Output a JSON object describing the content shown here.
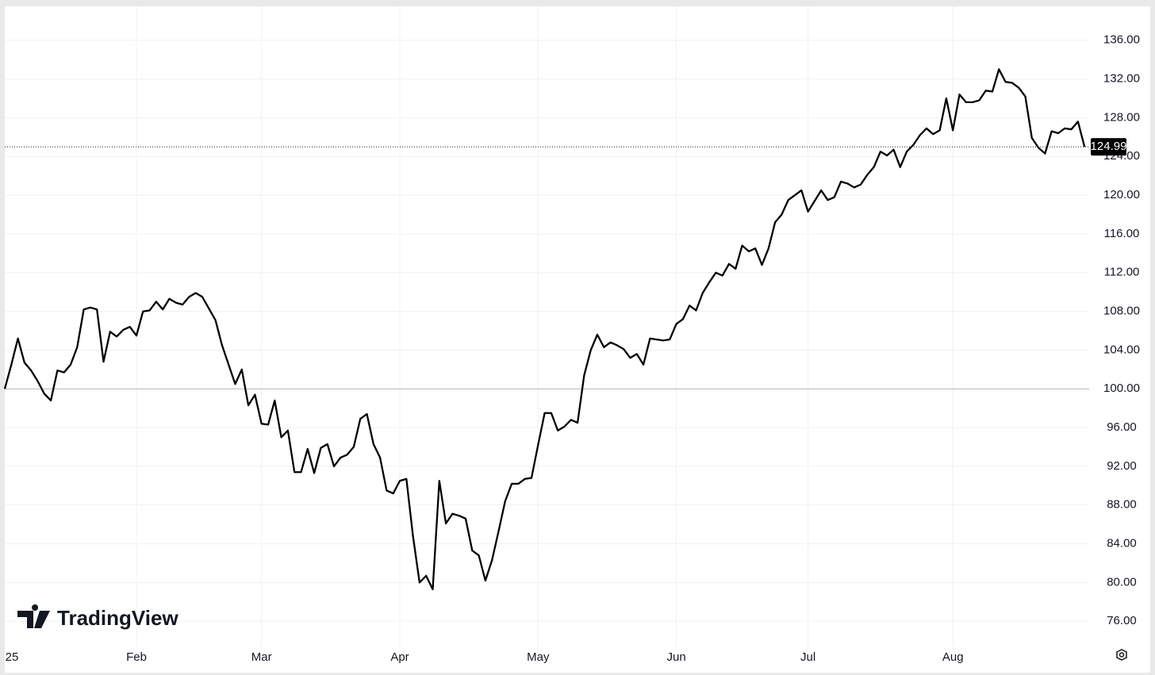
{
  "chart_data": {
    "type": "line",
    "brand": "TradingView",
    "categories": [
      "25",
      null,
      null,
      null,
      null,
      null,
      null,
      null,
      null,
      null,
      null,
      null,
      null,
      null,
      null,
      null,
      null,
      null,
      null,
      null,
      "Feb",
      null,
      null,
      null,
      null,
      null,
      null,
      null,
      null,
      null,
      null,
      null,
      null,
      null,
      null,
      null,
      null,
      null,
      null,
      "Mar",
      null,
      null,
      null,
      null,
      null,
      null,
      null,
      null,
      null,
      null,
      null,
      null,
      null,
      null,
      null,
      null,
      null,
      null,
      null,
      null,
      "Apr",
      null,
      null,
      null,
      null,
      null,
      null,
      null,
      null,
      null,
      null,
      null,
      null,
      null,
      null,
      null,
      null,
      null,
      null,
      null,
      null,
      "May",
      null,
      null,
      null,
      null,
      null,
      null,
      null,
      null,
      null,
      null,
      null,
      null,
      null,
      null,
      null,
      null,
      null,
      null,
      null,
      null,
      "Jun",
      null,
      null,
      null,
      null,
      null,
      null,
      null,
      null,
      null,
      null,
      null,
      null,
      null,
      null,
      null,
      null,
      null,
      null,
      null,
      "Jul",
      null,
      null,
      null,
      null,
      null,
      null,
      null,
      null,
      null,
      null,
      null,
      null,
      null,
      null,
      null,
      null,
      null,
      null,
      null,
      null,
      null,
      "Aug",
      null,
      null,
      null,
      null,
      null,
      null,
      null,
      null,
      null,
      null,
      null,
      null,
      null,
      null,
      null,
      null,
      null,
      null,
      null,
      null
    ],
    "values": [
      100.0,
      102.5,
      105.2,
      102.7,
      101.9,
      100.8,
      99.5,
      98.8,
      101.9,
      101.7,
      102.5,
      104.3,
      108.2,
      108.4,
      108.2,
      102.8,
      105.9,
      105.4,
      106.1,
      106.4,
      105.5,
      108.0,
      108.1,
      109.0,
      108.2,
      109.3,
      108.9,
      108.7,
      109.5,
      109.9,
      109.5,
      108.3,
      107.1,
      104.5,
      102.5,
      100.5,
      102.0,
      98.3,
      99.4,
      96.4,
      96.3,
      98.8,
      95.0,
      95.7,
      91.4,
      91.4,
      93.8,
      91.3,
      93.9,
      94.3,
      92.0,
      92.9,
      93.2,
      94.0,
      96.9,
      97.4,
      94.3,
      92.9,
      89.5,
      89.2,
      90.5,
      90.7,
      84.8,
      80.0,
      80.7,
      79.3,
      90.5,
      86.1,
      87.1,
      86.9,
      86.6,
      83.3,
      82.8,
      80.2,
      82.3,
      85.3,
      88.4,
      90.2,
      90.2,
      90.7,
      90.8,
      94.2,
      97.5,
      97.5,
      95.7,
      96.1,
      96.8,
      96.5,
      101.4,
      104.0,
      105.6,
      104.3,
      104.8,
      104.5,
      104.1,
      103.2,
      103.6,
      102.5,
      105.2,
      105.1,
      105.0,
      105.1,
      106.7,
      107.2,
      108.6,
      108.1,
      109.9,
      111.0,
      112.0,
      111.7,
      112.9,
      112.4,
      114.8,
      114.2,
      114.5,
      112.8,
      114.5,
      117.2,
      118.0,
      119.5,
      120.0,
      120.5,
      118.3,
      119.4,
      120.5,
      119.5,
      119.8,
      121.4,
      121.2,
      120.8,
      121.1,
      122.1,
      122.9,
      124.5,
      124.1,
      124.7,
      122.9,
      124.5,
      125.2,
      126.2,
      126.9,
      126.3,
      126.7,
      130.0,
      126.7,
      130.4,
      129.6,
      129.6,
      129.8,
      130.8,
      130.7,
      133.0,
      131.7,
      131.6,
      131.1,
      130.2,
      125.9,
      124.9,
      124.3,
      126.6,
      126.4,
      126.9,
      126.8,
      127.6,
      124.99
    ],
    "color": "#000000",
    "ylim": [
      73.4,
      139.5
    ],
    "yticks": [
      {
        "value": 76,
        "label": "76.00"
      },
      {
        "value": 80,
        "label": "80.00"
      },
      {
        "value": 84,
        "label": "84.00"
      },
      {
        "value": 88,
        "label": "88.00"
      },
      {
        "value": 92,
        "label": "92.00"
      },
      {
        "value": 96,
        "label": "96.00"
      },
      {
        "value": 100,
        "label": "100.00"
      },
      {
        "value": 104,
        "label": "104.00"
      },
      {
        "value": 108,
        "label": "108.00"
      },
      {
        "value": 112,
        "label": "112.00"
      },
      {
        "value": 116,
        "label": "116.00"
      },
      {
        "value": 120,
        "label": "120.00"
      },
      {
        "value": 124,
        "label": "124.00"
      },
      {
        "value": 128,
        "label": "128.00"
      },
      {
        "value": 132,
        "label": "132.00"
      },
      {
        "value": 136,
        "label": "136.00"
      }
    ],
    "grid": true
  }
}
